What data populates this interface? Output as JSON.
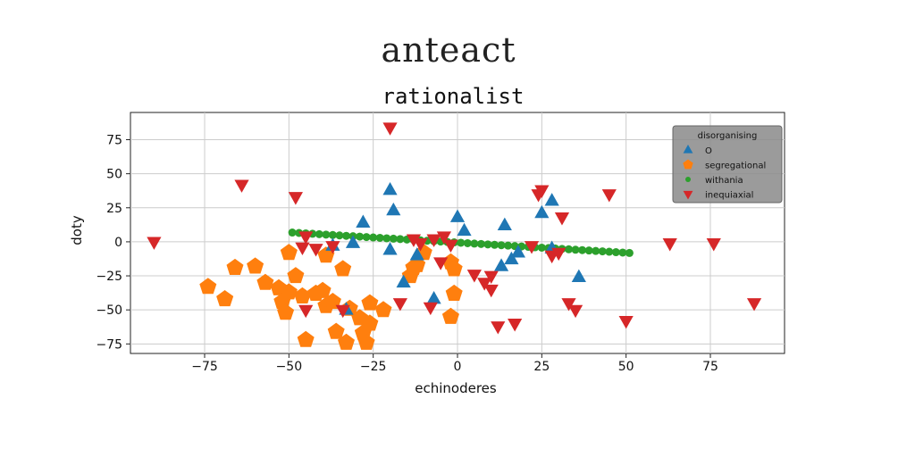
{
  "header": {
    "title": "anteact"
  },
  "chart_data": {
    "type": "scatter",
    "title": "rationalist",
    "xlabel": "echinoderes",
    "ylabel": "doty",
    "xlim": [
      -97,
      97
    ],
    "ylim": [
      -82,
      95
    ],
    "xticks": [
      -75,
      -50,
      -25,
      0,
      25,
      50,
      75
    ],
    "yticks": [
      75,
      50,
      25,
      0,
      -25,
      -50,
      -75
    ],
    "grid": true,
    "legend": {
      "title": "disorganising",
      "placement": "top-right"
    },
    "series": [
      {
        "name": "O",
        "marker": "triangle-up",
        "color": "#1f77b4",
        "points": [
          [
            -20,
            38
          ],
          [
            -19,
            23
          ],
          [
            -28,
            14
          ],
          [
            -31,
            -1
          ],
          [
            -12,
            -10
          ],
          [
            -16,
            -30
          ],
          [
            -20,
            -6
          ],
          [
            -7,
            -42
          ],
          [
            0,
            18
          ],
          [
            2,
            8
          ],
          [
            14,
            12
          ],
          [
            16,
            -13
          ],
          [
            13,
            -18
          ],
          [
            18,
            -8
          ],
          [
            25,
            21
          ],
          [
            28,
            30
          ],
          [
            28,
            -5
          ],
          [
            36,
            -26
          ],
          [
            -33,
            -50
          ],
          [
            -37,
            -3
          ]
        ]
      },
      {
        "name": "segregational",
        "marker": "pentagon",
        "color": "#ff7f0e",
        "points": [
          [
            -74,
            -33
          ],
          [
            -69,
            -42
          ],
          [
            -66,
            -19
          ],
          [
            -60,
            -18
          ],
          [
            -57,
            -30
          ],
          [
            -53,
            -34
          ],
          [
            -52,
            -44
          ],
          [
            -51,
            -52
          ],
          [
            -50,
            -37
          ],
          [
            -48,
            -25
          ],
          [
            -46,
            -40
          ],
          [
            -45,
            -72
          ],
          [
            -42,
            -38
          ],
          [
            -40,
            -36
          ],
          [
            -39,
            -47
          ],
          [
            -37,
            -44
          ],
          [
            -36,
            -66
          ],
          [
            -34,
            -20
          ],
          [
            -33,
            -74
          ],
          [
            -32,
            -49
          ],
          [
            -29,
            -56
          ],
          [
            -28,
            -67
          ],
          [
            -27,
            -74
          ],
          [
            -26,
            -60
          ],
          [
            -22,
            -50
          ],
          [
            -14,
            -25
          ],
          [
            -13,
            -19
          ],
          [
            -12,
            -17
          ],
          [
            -10,
            -8
          ],
          [
            -2,
            -15
          ],
          [
            -1,
            -20
          ],
          [
            -1,
            -38
          ],
          [
            -2,
            -55
          ],
          [
            -50,
            -8
          ],
          [
            -39,
            -10
          ],
          [
            -26,
            -45
          ]
        ]
      },
      {
        "name": "withania",
        "marker": "circle",
        "color": "#2ca02c",
        "points": [
          [
            -49,
            6.8
          ],
          [
            -47,
            6.5
          ],
          [
            -45,
            6.2
          ],
          [
            -43,
            5.9
          ],
          [
            -41,
            5.6
          ],
          [
            -39,
            5.3
          ],
          [
            -37,
            5.0
          ],
          [
            -35,
            4.7
          ],
          [
            -33,
            4.4
          ],
          [
            -31,
            4.1
          ],
          [
            -29,
            3.8
          ],
          [
            -27,
            3.5
          ],
          [
            -25,
            3.2
          ],
          [
            -23,
            2.9
          ],
          [
            -21,
            2.6
          ],
          [
            -19,
            2.3
          ],
          [
            -17,
            2.0
          ],
          [
            -15,
            1.7
          ],
          [
            -13,
            1.4
          ],
          [
            -11,
            1.1
          ],
          [
            -9,
            0.8
          ],
          [
            -7,
            0.5
          ],
          [
            -5,
            0.2
          ],
          [
            -3,
            -0.1
          ],
          [
            -1,
            -0.4
          ],
          [
            1,
            -0.7
          ],
          [
            3,
            -1.0
          ],
          [
            5,
            -1.3
          ],
          [
            7,
            -1.6
          ],
          [
            9,
            -1.9
          ],
          [
            11,
            -2.2
          ],
          [
            13,
            -2.5
          ],
          [
            15,
            -2.8
          ],
          [
            17,
            -3.1
          ],
          [
            19,
            -3.4
          ],
          [
            21,
            -3.7
          ],
          [
            23,
            -4.0
          ],
          [
            25,
            -4.3
          ],
          [
            27,
            -4.6
          ],
          [
            29,
            -4.9
          ],
          [
            31,
            -5.2
          ],
          [
            33,
            -5.5
          ],
          [
            35,
            -5.8
          ],
          [
            37,
            -6.1
          ],
          [
            39,
            -6.4
          ],
          [
            41,
            -6.7
          ],
          [
            43,
            -7.0
          ],
          [
            45,
            -7.3
          ],
          [
            47,
            -7.6
          ],
          [
            49,
            -7.9
          ],
          [
            51,
            -8.2
          ]
        ]
      },
      {
        "name": "inequiaxial",
        "marker": "triangle-down",
        "color": "#d62728",
        "points": [
          [
            -90,
            0
          ],
          [
            -64,
            42
          ],
          [
            -48,
            33
          ],
          [
            -46,
            -4
          ],
          [
            -45,
            4
          ],
          [
            -45,
            -50
          ],
          [
            -42,
            -5
          ],
          [
            -37,
            -3
          ],
          [
            -34,
            -50
          ],
          [
            -20,
            84
          ],
          [
            -17,
            -45
          ],
          [
            -13,
            2
          ],
          [
            -8,
            -48
          ],
          [
            -7,
            2
          ],
          [
            -4,
            4
          ],
          [
            5,
            -24
          ],
          [
            8,
            -30
          ],
          [
            10,
            -35
          ],
          [
            12,
            -62
          ],
          [
            17,
            -60
          ],
          [
            22,
            -3
          ],
          [
            24,
            35
          ],
          [
            25,
            38
          ],
          [
            28,
            -10
          ],
          [
            31,
            18
          ],
          [
            33,
            -45
          ],
          [
            35,
            -50
          ],
          [
            45,
            35
          ],
          [
            50,
            -58
          ],
          [
            63,
            -1
          ],
          [
            76,
            -1
          ],
          [
            88,
            -45
          ],
          [
            -11,
            -1
          ],
          [
            -2,
            -2
          ],
          [
            30,
            -8
          ],
          [
            -5,
            -15
          ],
          [
            10,
            -25
          ]
        ]
      }
    ]
  }
}
